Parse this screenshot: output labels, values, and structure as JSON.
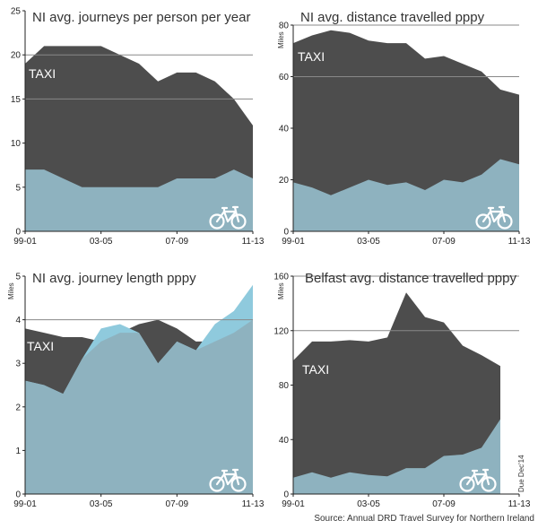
{
  "colors": {
    "taxi": "#4d4d4d",
    "bicycle": "#8eb2bf",
    "bicycle_highlight": "#8fcadd",
    "grid": "#888888",
    "axis": "#222222"
  },
  "source": "Source: Annual DRD Travel Survey for Northern Ireland",
  "chart_data": [
    {
      "type": "area",
      "title": "NI avg. journeys per person per year",
      "ylabel": "",
      "ylim": [
        0,
        25
      ],
      "yticks": [
        "0",
        "5",
        "10",
        "15",
        "20",
        "25"
      ],
      "gridlines": [
        15,
        20
      ],
      "xtick_labels": [
        "99-01",
        "03-05",
        "07-09",
        "11-13"
      ],
      "taxi_label": "TAXI",
      "icon": "bicycle-icon",
      "series": [
        {
          "name": "TAXI",
          "values": [
            19,
            21,
            21,
            21,
            21,
            20,
            19,
            17,
            18,
            18,
            17,
            15,
            12
          ]
        },
        {
          "values": [
            7,
            7,
            6,
            5,
            5,
            5,
            5,
            5,
            6,
            6,
            6,
            7,
            6
          ]
        }
      ]
    },
    {
      "type": "area",
      "title": "NI avg. distance travelled pppy",
      "ylabel": "Miles",
      "ylim": [
        0,
        80
      ],
      "yticks": [
        "0",
        "20",
        "40",
        "60",
        "80"
      ],
      "gridlines": [
        60,
        80
      ],
      "xtick_labels": [
        "99-01",
        "03-05",
        "07-09",
        "11-13"
      ],
      "taxi_label": "TAXI",
      "icon": "bicycle-icon",
      "series": [
        {
          "name": "TAXI",
          "values": [
            73,
            76,
            78,
            77,
            74,
            73,
            73,
            67,
            68,
            65,
            62,
            55,
            53
          ]
        },
        {
          "values": [
            19,
            17,
            14,
            17,
            20,
            18,
            19,
            16,
            20,
            19,
            22,
            28,
            26
          ]
        }
      ]
    },
    {
      "type": "area",
      "title": "NI avg. journey length pppy",
      "ylabel": "Miles",
      "ylim": [
        0,
        5
      ],
      "yticks": [
        "0",
        "1",
        "2",
        "3",
        "4",
        "5"
      ],
      "gridlines": [
        4
      ],
      "xtick_labels": [
        "99-01",
        "03-05",
        "07-09",
        "11-13"
      ],
      "taxi_label": "TAXI",
      "icon": "bicycle-icon",
      "series": [
        {
          "name": "TAXI",
          "values": [
            3.8,
            3.7,
            3.6,
            3.6,
            3.5,
            3.7,
            3.9,
            4.0,
            3.8,
            3.5,
            3.5,
            3.7,
            4.0
          ]
        },
        {
          "values": [
            2.6,
            2.5,
            2.3,
            3.1,
            3.8,
            3.9,
            3.7,
            3.0,
            3.5,
            3.3,
            3.9,
            4.2,
            4.8
          ]
        }
      ]
    },
    {
      "type": "area",
      "title": "Belfast avg. distance travelled pppy",
      "ylabel": "Miles",
      "ylim": [
        0,
        160
      ],
      "yticks": [
        "0",
        "40",
        "80",
        "120",
        "160"
      ],
      "gridlines": [
        120,
        160
      ],
      "xtick_labels": [
        "99-01",
        "03-05",
        "07-09",
        "11-13"
      ],
      "taxi_label": "TAXI",
      "icon": "bicycle-icon",
      "annotation": "Due Dec'14",
      "series": [
        {
          "name": "TAXI",
          "values": [
            98,
            112,
            112,
            113,
            112,
            115,
            148,
            130,
            126,
            109,
            102,
            94
          ]
        },
        {
          "values": [
            12,
            16,
            12,
            16,
            14,
            13,
            19,
            19,
            28,
            29,
            34,
            55
          ]
        }
      ]
    }
  ]
}
